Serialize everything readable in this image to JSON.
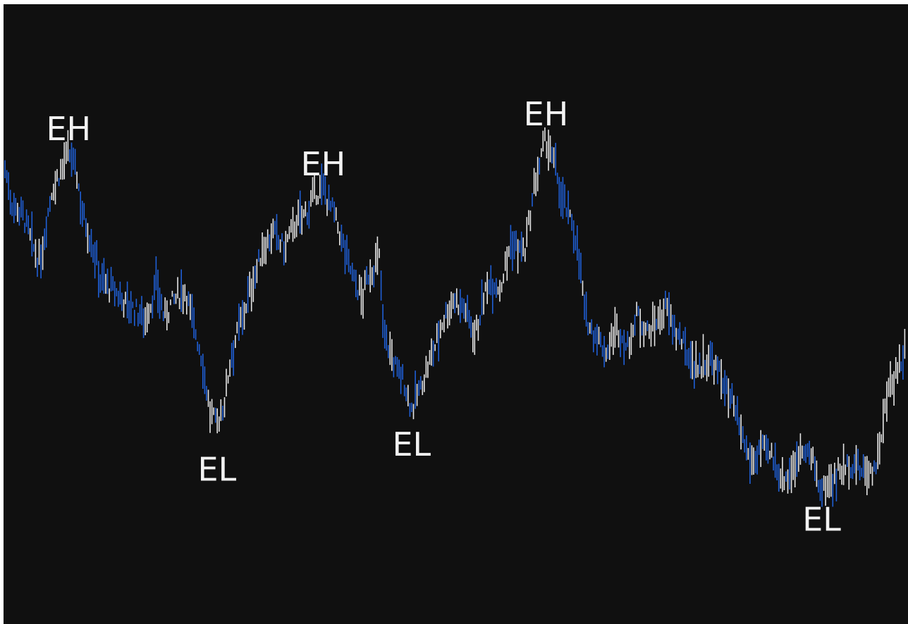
{
  "chart_data": {
    "type": "bar",
    "title": "",
    "xlabel": "",
    "ylabel": "",
    "grid": false,
    "legend": "none",
    "colors": {
      "background": "#101010",
      "up": "#e6e6e6",
      "down": "#1f5fd6",
      "text": "#f2f2f2"
    },
    "ylim": [
      0,
      100
    ],
    "xlim": [
      0,
      255
    ],
    "annotations": [
      {
        "text": "EH",
        "x": 18,
        "y": 83.5,
        "position": "above"
      },
      {
        "text": "EH",
        "x": 90,
        "y": 76.5,
        "position": "above"
      },
      {
        "text": "EH",
        "x": 153,
        "y": 86.5,
        "position": "above"
      },
      {
        "text": "EL",
        "x": 60,
        "y": 23.0,
        "position": "below"
      },
      {
        "text": "EL",
        "x": 115,
        "y": 28.0,
        "position": "below"
      },
      {
        "text": "EL",
        "x": 231,
        "y": 13.0,
        "position": "below"
      }
    ],
    "waypoints": [
      [
        0,
        79
      ],
      [
        2,
        72
      ],
      [
        5,
        70
      ],
      [
        9,
        61
      ],
      [
        10,
        60
      ],
      [
        13,
        74
      ],
      [
        16,
        79
      ],
      [
        18,
        82
      ],
      [
        20,
        79
      ],
      [
        22,
        70
      ],
      [
        25,
        63
      ],
      [
        27,
        57
      ],
      [
        30,
        55
      ],
      [
        36,
        51
      ],
      [
        40,
        49
      ],
      [
        43,
        56
      ],
      [
        45,
        49
      ],
      [
        47,
        52
      ],
      [
        51,
        55
      ],
      [
        53,
        49
      ],
      [
        56,
        40
      ],
      [
        58,
        30
      ],
      [
        60,
        28
      ],
      [
        62,
        32
      ],
      [
        64,
        42
      ],
      [
        67,
        49
      ],
      [
        70,
        56
      ],
      [
        73,
        63
      ],
      [
        76,
        66
      ],
      [
        79,
        63
      ],
      [
        82,
        68
      ],
      [
        85,
        70
      ],
      [
        88,
        74
      ],
      [
        90,
        75
      ],
      [
        93,
        70
      ],
      [
        96,
        63
      ],
      [
        99,
        56
      ],
      [
        101,
        53
      ],
      [
        103,
        58
      ],
      [
        106,
        61
      ],
      [
        107,
        47
      ],
      [
        110,
        40
      ],
      [
        113,
        36
      ],
      [
        115,
        31
      ],
      [
        118,
        36
      ],
      [
        121,
        42
      ],
      [
        124,
        49
      ],
      [
        127,
        53
      ],
      [
        130,
        51
      ],
      [
        133,
        46
      ],
      [
        137,
        57
      ],
      [
        140,
        55
      ],
      [
        143,
        64
      ],
      [
        147,
        62
      ],
      [
        150,
        76
      ],
      [
        153,
        85
      ],
      [
        156,
        78
      ],
      [
        158,
        72
      ],
      [
        161,
        67
      ],
      [
        163,
        58
      ],
      [
        164,
        49
      ],
      [
        167,
        46
      ],
      [
        170,
        42
      ],
      [
        173,
        47
      ],
      [
        176,
        43
      ],
      [
        179,
        50
      ],
      [
        182,
        46
      ],
      [
        185,
        49
      ],
      [
        187,
        51
      ],
      [
        190,
        46
      ],
      [
        193,
        42
      ],
      [
        196,
        39
      ],
      [
        199,
        41
      ],
      [
        202,
        38
      ],
      [
        204,
        35
      ],
      [
        206,
        31
      ],
      [
        208,
        26
      ],
      [
        211,
        20
      ],
      [
        214,
        23
      ],
      [
        217,
        21
      ],
      [
        220,
        17
      ],
      [
        223,
        19
      ],
      [
        226,
        24
      ],
      [
        228,
        21
      ],
      [
        231,
        14
      ],
      [
        234,
        17
      ],
      [
        237,
        19
      ],
      [
        240,
        20
      ],
      [
        243,
        18
      ],
      [
        246,
        19
      ],
      [
        248,
        26
      ],
      [
        250,
        35
      ],
      [
        252,
        38
      ],
      [
        255,
        43
      ]
    ]
  }
}
